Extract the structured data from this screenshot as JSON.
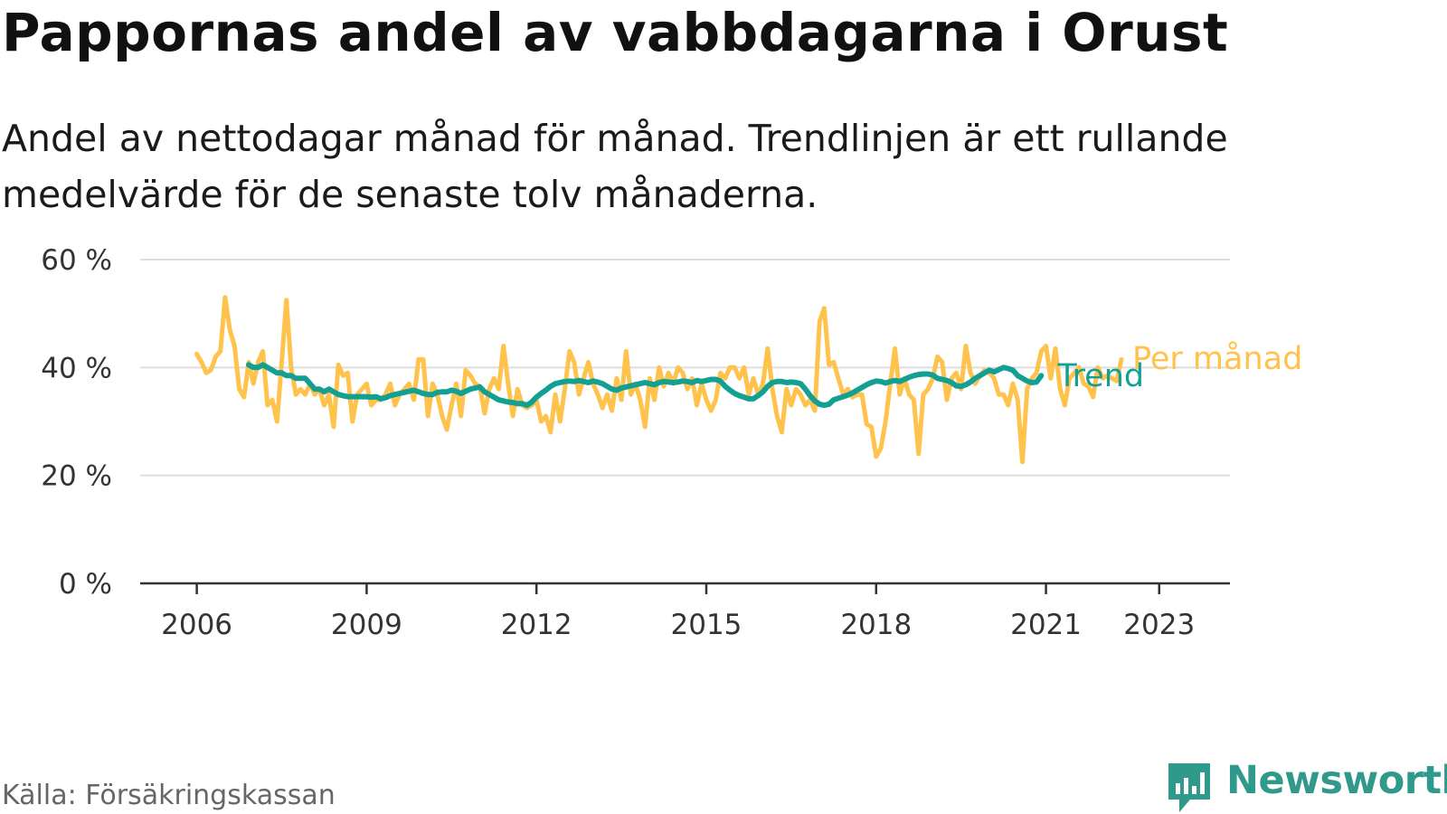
{
  "title": "Pappornas andel av vabbdagarna i Orust",
  "subtitle": "Andel av nettodagar månad för månad. Trendlinjen är ett rullande medelvärde för de senaste tolv månaderna.",
  "source": "Källa: Försäkringskassan",
  "brand": {
    "name": "Newsworthy",
    "icon": "newsworthy-chart-bubble-icon"
  },
  "colors": {
    "monthly": "#ffc24d",
    "trend": "#13a093",
    "grid": "#dddddd",
    "axis": "#333333"
  },
  "chart_data": {
    "type": "line",
    "title": "Pappornas andel av vabbdagarna i Orust",
    "yticks": [
      "0 %",
      "20 %",
      "40 %",
      "60 %"
    ],
    "yvalues": [
      0,
      20,
      40,
      60
    ],
    "xticks": [
      "2006",
      "2009",
      "2012",
      "2015",
      "2018",
      "2021",
      "2023"
    ],
    "xtick_years": [
      2006,
      2009,
      2012,
      2015,
      2018,
      2021,
      2023
    ],
    "ylim": [
      0,
      60
    ],
    "xlim": [
      2005.0,
      2024.25
    ],
    "grid": true,
    "series": [
      {
        "name": "Per månad",
        "start": "2006-01",
        "values": [
          42.5,
          41,
          39,
          39.5,
          42,
          43,
          53,
          47,
          44,
          36,
          34.5,
          41,
          37,
          41,
          43,
          33,
          34,
          30,
          41,
          52.5,
          40,
          35,
          36,
          35,
          37,
          35,
          36,
          33,
          35,
          29,
          40.5,
          38.5,
          39,
          30,
          35,
          36,
          37,
          33,
          34,
          34,
          35,
          37,
          33,
          35,
          36,
          37,
          34,
          41.5,
          41.5,
          31,
          37,
          35,
          31,
          28.5,
          33,
          37,
          31,
          39.5,
          38.5,
          37,
          36.5,
          31.5,
          36,
          38,
          36,
          44,
          37,
          31,
          36,
          33,
          32.5,
          33,
          34,
          30,
          31,
          28,
          35,
          30,
          36,
          43,
          41,
          35,
          38,
          41,
          37,
          35,
          32.5,
          35,
          32,
          38,
          34,
          43,
          35,
          37,
          34,
          29,
          38,
          34,
          40,
          36.5,
          39,
          37,
          40,
          39,
          36,
          38,
          33,
          37,
          34,
          32,
          34,
          39,
          38,
          40,
          40,
          38,
          40,
          35,
          38,
          35,
          37,
          43.5,
          36,
          31,
          28,
          36,
          33,
          36,
          35,
          33,
          34,
          32,
          48.5,
          51,
          40.5,
          41,
          38,
          35,
          36,
          34.5,
          35,
          35,
          29.5,
          29,
          23.5,
          25,
          30,
          37,
          43.5,
          35,
          38,
          35,
          34,
          24,
          35,
          36,
          38,
          42,
          41,
          34,
          38,
          39,
          36,
          44,
          39,
          37,
          38.5,
          39.5,
          39,
          38,
          35,
          35,
          33,
          37,
          34,
          22.5,
          36,
          38,
          39,
          43,
          44,
          38,
          43.5,
          36,
          33,
          38,
          39,
          40,
          37,
          36.5,
          34.5,
          40,
          38,
          38.5,
          38,
          37.5,
          41.5
        ]
      },
      {
        "name": "Trend",
        "start": "2006-12",
        "values": [
          40.5,
          40,
          40,
          40.5,
          40,
          39.5,
          39,
          39,
          38.5,
          38.5,
          38,
          38,
          38,
          37,
          36,
          36,
          35.5,
          36,
          35.5,
          35,
          34.8,
          34.6,
          34.6,
          34.6,
          34.6,
          34.6,
          34.5,
          34.6,
          34.2,
          34.4,
          34.8,
          35,
          35.2,
          35.4,
          35.6,
          35.8,
          35.5,
          35.2,
          35,
          35,
          35.4,
          35.5,
          35.5,
          35.8,
          35.6,
          35.2,
          35.6,
          36,
          36.2,
          36.4,
          35.5,
          35,
          34.5,
          34,
          33.8,
          33.6,
          33.5,
          33.3,
          33.3,
          33,
          33.6,
          34.5,
          35.2,
          35.8,
          36.5,
          37,
          37.2,
          37.4,
          37.5,
          37.4,
          37.6,
          37.4,
          37.2,
          37.5,
          37.3,
          37,
          36.5,
          36,
          35.8,
          36.2,
          36.4,
          36.6,
          36.8,
          37,
          37.2,
          37,
          36.8,
          37.2,
          37.4,
          37.3,
          37.2,
          37.3,
          37.5,
          37.4,
          37.2,
          37.6,
          37.4,
          37.6,
          37.8,
          37.8,
          37.5,
          36.5,
          35.8,
          35.2,
          34.8,
          34.5,
          34.2,
          34.2,
          34.8,
          35.5,
          36.5,
          37.2,
          37.4,
          37.4,
          37.2,
          37.3,
          37.2,
          37,
          36,
          34.8,
          33.8,
          33.2,
          33,
          33.2,
          34,
          34.3,
          34.6,
          34.9,
          35.3,
          35.8,
          36.3,
          36.8,
          37.2,
          37.5,
          37.4,
          37.1,
          37.4,
          37.6,
          37.4,
          37.8,
          38.2,
          38.5,
          38.7,
          38.8,
          38.8,
          38.6,
          38,
          37.8,
          37.6,
          37.2,
          36.6,
          36.5,
          36.8,
          37.3,
          38,
          38.5,
          39,
          39.5,
          39.2,
          39.6,
          40,
          39.8,
          39.5,
          38.5,
          38,
          37.5,
          37.2,
          37.3,
          38.5
        ]
      }
    ],
    "series_labels": [
      "Per månad",
      "Trend"
    ]
  }
}
